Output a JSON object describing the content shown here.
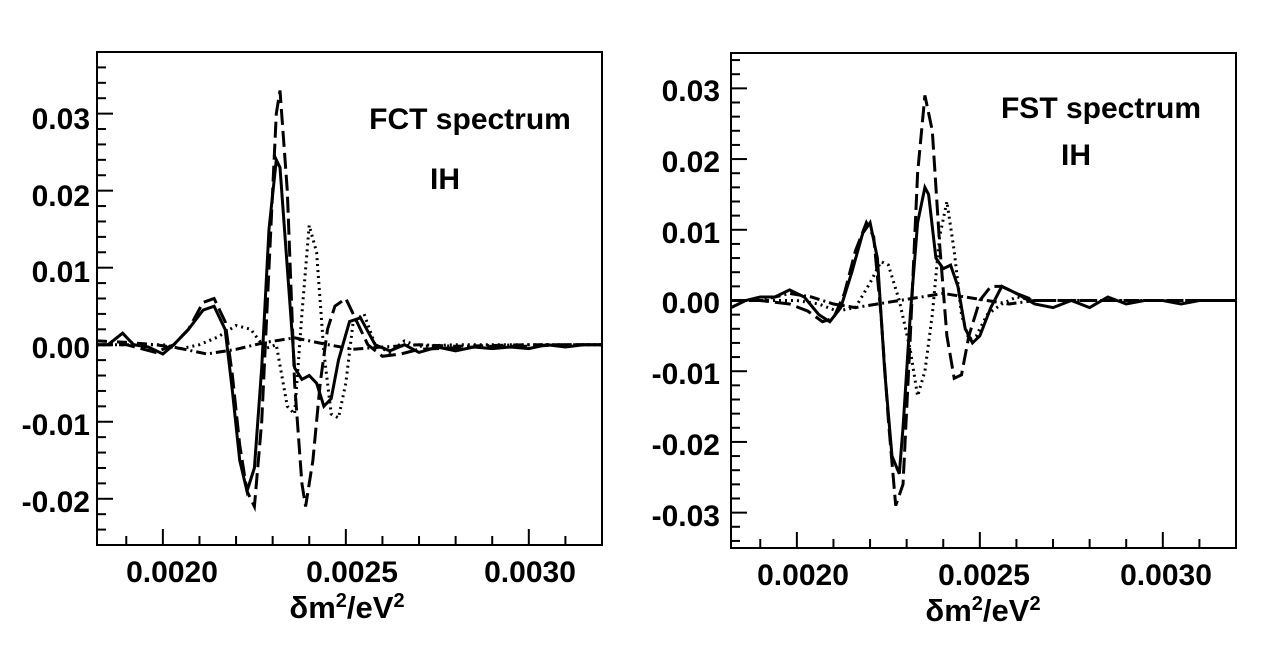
{
  "panels": [
    {
      "annotations": [
        "FCT spectrum",
        "IH"
      ],
      "xlabel": "δm²/eV²",
      "x_tick_labels": [
        "0.0020",
        "0.0025",
        "0.0030"
      ],
      "y_tick_labels": [
        "0.03",
        "0.02",
        "0.01",
        "0.00",
        "-0.01",
        "-0.02"
      ]
    },
    {
      "annotations": [
        "FST spectrum",
        "IH"
      ],
      "xlabel": "δm²/eV²",
      "x_tick_labels": [
        "0.0020",
        "0.0025",
        "0.0030"
      ],
      "y_tick_labels": [
        "0.03",
        "0.02",
        "0.01",
        "0.00",
        "-0.01",
        "-0.02",
        "-0.03"
      ]
    }
  ],
  "chart_data": [
    {
      "type": "line",
      "title": "",
      "annotations": [
        "FCT spectrum",
        "IH"
      ],
      "xlabel": "δm²/eV²",
      "ylabel": "",
      "xlim": [
        0.00182,
        0.0032
      ],
      "ylim": [
        -0.026,
        0.038
      ],
      "x_ticks": [
        0.002,
        0.0025,
        0.003
      ],
      "y_ticks": [
        0.03,
        0.02,
        0.01,
        0.0,
        -0.01,
        -0.02
      ],
      "grid": false,
      "series": [
        {
          "style": "solid",
          "x": [
            0.00182,
            0.00185,
            0.00189,
            0.00192,
            0.00196,
            0.002,
            0.00203,
            0.00207,
            0.00211,
            0.00214,
            0.00217,
            0.00219,
            0.00221,
            0.00223,
            0.00225,
            0.00227,
            0.00229,
            0.00231,
            0.00232,
            0.00234,
            0.00236,
            0.00238,
            0.0024,
            0.00242,
            0.00244,
            0.00246,
            0.00248,
            0.00251,
            0.00254,
            0.00258,
            0.00262,
            0.00266,
            0.0027,
            0.00275,
            0.0028,
            0.00285,
            0.0029,
            0.00295,
            0.003,
            0.00305,
            0.0031,
            0.00315,
            0.0032
          ],
          "y": [
            0.0,
            0.0,
            0.0015,
            0.0,
            -0.0003,
            -0.0012,
            0.0,
            0.002,
            0.0045,
            0.005,
            0.002,
            -0.006,
            -0.015,
            -0.019,
            -0.016,
            -0.003,
            0.015,
            0.024,
            0.023,
            0.01,
            -0.003,
            -0.0045,
            -0.004,
            -0.005,
            -0.008,
            -0.007,
            -0.002,
            0.003,
            0.0035,
            0.0,
            -0.0008,
            0.0,
            -0.001,
            -0.0003,
            -0.0008,
            -0.0003,
            -0.0005,
            -0.0003,
            -0.0005,
            0.0,
            -0.0003,
            0.0,
            0.0
          ]
        },
        {
          "style": "dashed",
          "x": [
            0.00182,
            0.0019,
            0.00198,
            0.00203,
            0.00207,
            0.00211,
            0.00214,
            0.00217,
            0.00219,
            0.00221,
            0.00223,
            0.00225,
            0.00227,
            0.00229,
            0.00231,
            0.00232,
            0.00234,
            0.00236,
            0.00238,
            0.00239,
            0.00241,
            0.00243,
            0.00245,
            0.00247,
            0.0025,
            0.00253,
            0.00256,
            0.0026,
            0.00265,
            0.0027,
            0.0028,
            0.0029,
            0.003,
            0.0031,
            0.0032
          ],
          "y": [
            0.0,
            0.0,
            -0.001,
            0.0,
            0.002,
            0.0055,
            0.006,
            0.003,
            -0.004,
            -0.013,
            -0.019,
            -0.021,
            -0.01,
            0.01,
            0.03,
            0.033,
            0.02,
            -0.005,
            -0.018,
            -0.021,
            -0.015,
            -0.005,
            0.002,
            0.005,
            0.006,
            0.003,
            0.0,
            -0.0015,
            -0.0012,
            -0.0006,
            -0.0004,
            -0.0002,
            -0.0002,
            0.0,
            0.0
          ]
        },
        {
          "style": "dotted",
          "x": [
            0.00182,
            0.002,
            0.00205,
            0.0021,
            0.00215,
            0.0022,
            0.00224,
            0.00228,
            0.00231,
            0.00234,
            0.00236,
            0.00238,
            0.0024,
            0.00242,
            0.00244,
            0.00246,
            0.00248,
            0.0025,
            0.00252,
            0.00255,
            0.00258,
            0.00262,
            0.00266,
            0.0027,
            0.0028,
            0.0029,
            0.003,
            0.0031,
            0.0032
          ],
          "y": [
            0.0,
            0.0,
            -0.0005,
            0.0,
            0.001,
            0.0025,
            0.002,
            -0.0005,
            0.0,
            -0.008,
            -0.009,
            0.004,
            0.0155,
            0.012,
            -0.001,
            -0.009,
            -0.0095,
            -0.005,
            0.003,
            0.004,
            0.0,
            -0.001,
            0.0005,
            -0.0002,
            0.0,
            0.0,
            0.0,
            0.0,
            0.0
          ]
        },
        {
          "style": "dash-dot",
          "x": [
            0.00182,
            0.0019,
            0.00198,
            0.00205,
            0.00212,
            0.0022,
            0.00228,
            0.00236,
            0.00244,
            0.00252,
            0.0026,
            0.0027,
            0.0028,
            0.0029,
            0.003,
            0.0031,
            0.0032
          ],
          "y": [
            0.0005,
            0.0003,
            0.0,
            -0.0005,
            -0.0012,
            -0.0006,
            0.0003,
            0.0009,
            0.0001,
            -0.0006,
            -0.0003,
            0.0,
            -0.0002,
            -0.0001,
            0.0,
            0.0,
            0.0
          ]
        }
      ]
    },
    {
      "type": "line",
      "title": "",
      "annotations": [
        "FST spectrum",
        "IH"
      ],
      "xlabel": "δm²/eV²",
      "ylabel": "",
      "xlim": [
        0.00182,
        0.0032
      ],
      "ylim": [
        -0.035,
        0.035
      ],
      "x_ticks": [
        0.002,
        0.0025,
        0.003
      ],
      "y_ticks": [
        0.03,
        0.02,
        0.01,
        0.0,
        -0.01,
        -0.02,
        -0.03
      ],
      "grid": false,
      "series": [
        {
          "style": "solid",
          "x": [
            0.00182,
            0.00186,
            0.0019,
            0.00194,
            0.00198,
            0.00202,
            0.00206,
            0.00209,
            0.00212,
            0.00215,
            0.00218,
            0.0022,
            0.00222,
            0.00224,
            0.00226,
            0.00228,
            0.00229,
            0.00231,
            0.00233,
            0.00235,
            0.00236,
            0.00238,
            0.0024,
            0.00242,
            0.00244,
            0.00246,
            0.00248,
            0.0025,
            0.00253,
            0.00256,
            0.0026,
            0.00265,
            0.0027,
            0.00275,
            0.0028,
            0.00285,
            0.0029,
            0.00295,
            0.003,
            0.00305,
            0.0031,
            0.00315,
            0.0032
          ],
          "y": [
            -0.001,
            0.0,
            0.0005,
            0.0005,
            0.0015,
            0.0005,
            -0.002,
            -0.003,
            -0.001,
            0.004,
            0.0095,
            0.011,
            0.006,
            -0.01,
            -0.022,
            -0.0245,
            -0.018,
            -0.002,
            0.011,
            0.016,
            0.015,
            0.006,
            0.0045,
            0.005,
            0.002,
            -0.004,
            -0.006,
            -0.005,
            -0.001,
            0.002,
            0.001,
            -0.0005,
            -0.001,
            0.0,
            -0.001,
            0.0005,
            -0.0005,
            0.0,
            0.0,
            -0.0005,
            0.0,
            0.0,
            0.0
          ]
        },
        {
          "style": "dashed",
          "x": [
            0.00182,
            0.0019,
            0.00198,
            0.00203,
            0.00207,
            0.0021,
            0.00213,
            0.00216,
            0.00219,
            0.00221,
            0.00223,
            0.00225,
            0.00227,
            0.00229,
            0.00231,
            0.00233,
            0.00235,
            0.00237,
            0.00239,
            0.00241,
            0.00243,
            0.00245,
            0.00247,
            0.0025,
            0.00253,
            0.00256,
            0.0026,
            0.00265,
            0.0027,
            0.0028,
            0.0029,
            0.003,
            0.0031,
            0.0032
          ],
          "y": [
            0.0,
            0.0,
            -0.0005,
            -0.0015,
            -0.003,
            -0.0025,
            0.001,
            0.007,
            0.011,
            0.009,
            -0.002,
            -0.017,
            -0.029,
            -0.026,
            -0.005,
            0.018,
            0.029,
            0.024,
            0.008,
            -0.005,
            -0.011,
            -0.0105,
            -0.005,
            0.0,
            0.002,
            0.002,
            0.001,
            0.0,
            0.0,
            0.0,
            0.0,
            0.0,
            0.0,
            0.0
          ]
        },
        {
          "style": "dotted",
          "x": [
            0.00182,
            0.002,
            0.00206,
            0.00211,
            0.00216,
            0.0022,
            0.00223,
            0.00225,
            0.00228,
            0.00231,
            0.00233,
            0.00235,
            0.00237,
            0.00239,
            0.00241,
            0.00243,
            0.00245,
            0.00247,
            0.00249,
            0.00252,
            0.00256,
            0.0026,
            0.00265,
            0.0027,
            0.0028,
            0.0029,
            0.003,
            0.0031,
            0.0032
          ],
          "y": [
            0.0,
            0.0,
            -0.0005,
            -0.0015,
            -0.001,
            0.0025,
            0.0055,
            0.005,
            0.0,
            -0.007,
            -0.0135,
            -0.01,
            -0.002,
            0.009,
            0.014,
            0.007,
            -0.002,
            -0.0055,
            -0.005,
            -0.002,
            -0.0005,
            0.0005,
            0.0,
            0.0,
            0.0,
            0.0,
            0.0,
            0.0,
            0.0
          ]
        },
        {
          "style": "dash-dot",
          "x": [
            0.00182,
            0.0019,
            0.00198,
            0.00204,
            0.0021,
            0.00216,
            0.00222,
            0.00228,
            0.00234,
            0.0024,
            0.00246,
            0.00252,
            0.00258,
            0.00265,
            0.00272,
            0.0028,
            0.0029,
            0.003,
            0.0031,
            0.0032
          ],
          "y": [
            0.0,
            0.0,
            0.001,
            0.0005,
            -0.0005,
            -0.001,
            -0.0005,
            0.0,
            0.0005,
            0.001,
            0.0005,
            0.0,
            -0.0005,
            0.0,
            0.0,
            0.0,
            0.0,
            0.0,
            0.0,
            0.0
          ]
        }
      ]
    }
  ]
}
